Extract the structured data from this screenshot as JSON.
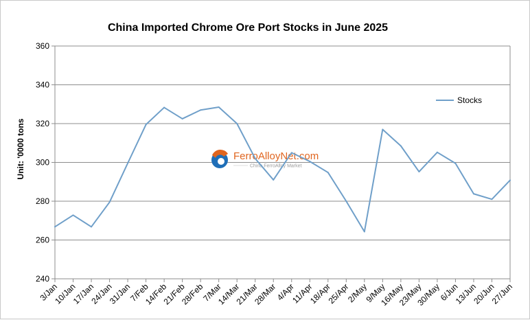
{
  "chart_data": {
    "type": "line",
    "title": "China Imported Chrome Ore Port Stocks in June 2025",
    "xlabel": "",
    "ylabel": "Unit: '0000 tons",
    "ylim": [
      240,
      360
    ],
    "yticks": [
      240,
      260,
      280,
      300,
      320,
      340,
      360
    ],
    "grid": true,
    "legend": "right",
    "categories": [
      "3/Jan",
      "10/Jan",
      "17/Jan",
      "24/Jan",
      "31/Jan",
      "7/Feb",
      "14/Feb",
      "21/Feb",
      "28/Feb",
      "7/Mar",
      "14/Mar",
      "21/Mar",
      "28/Mar",
      "4/Apr",
      "11/Apr",
      "18/Apr",
      "25/Apr",
      "2/May",
      "9/May",
      "16/May",
      "23/May",
      "30/May",
      "6/Jun",
      "13/Jun",
      "20/Jun",
      "27/Jun"
    ],
    "series": [
      {
        "name": "Stocks",
        "color": "#6f9fc9",
        "values": [
          266.8,
          272.8,
          266.8,
          279.5,
          299.6,
          319.5,
          328.3,
          322.5,
          327.0,
          328.5,
          320.0,
          302.0,
          291.0,
          305.0,
          300.5,
          294.8,
          280.0,
          264.3,
          317.0,
          308.5,
          295.2,
          305.2,
          299.5,
          283.8,
          281.0,
          290.8
        ]
      }
    ]
  },
  "watermark": {
    "name": "FerroAlloyNet.com",
    "tagline": "China FerroAlloy Market",
    "colors": {
      "orange": "#e0651f",
      "blue": "#1f6fb8"
    }
  }
}
